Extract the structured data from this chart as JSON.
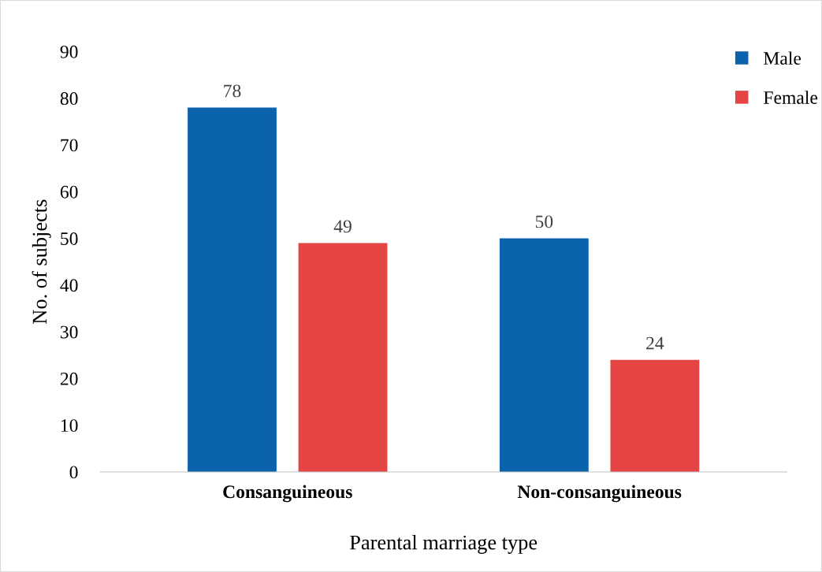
{
  "chart_data": {
    "type": "bar",
    "xlabel": "Parental marriage type",
    "ylabel": "No. of subjects",
    "categories": [
      "Consanguineous",
      "Non-consanguineous"
    ],
    "series": [
      {
        "name": "Male",
        "color": "#0b62ad",
        "values": [
          78,
          50
        ]
      },
      {
        "name": "Female",
        "color": "#e54444",
        "values": [
          49,
          24
        ]
      }
    ],
    "ylim": [
      0,
      90
    ],
    "yticks": [
      0,
      10,
      20,
      30,
      40,
      50,
      60,
      70,
      80,
      90
    ],
    "grid": false,
    "legend": "top right",
    "data_labels": true
  }
}
